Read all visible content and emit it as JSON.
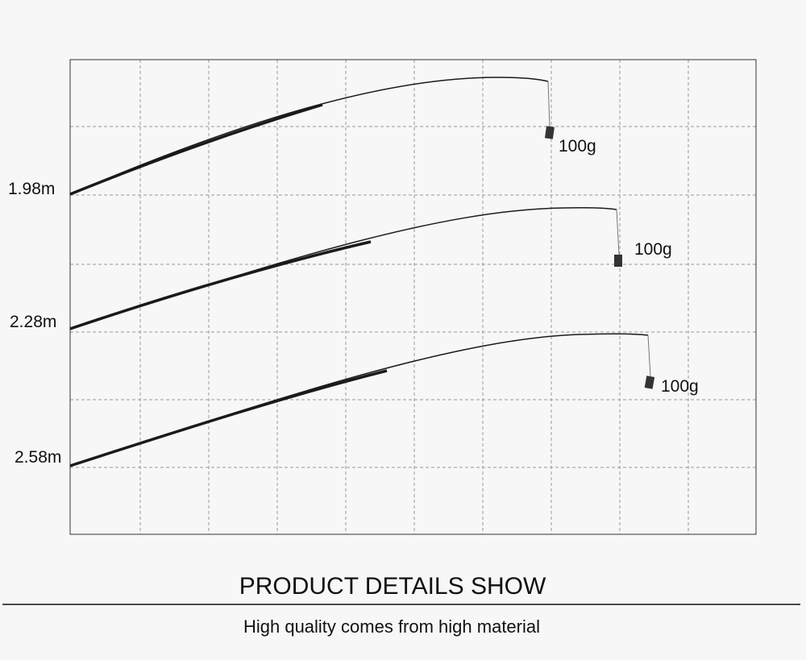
{
  "rods": [
    {
      "length": "1.98m",
      "weight": "100g"
    },
    {
      "length": "2.28m",
      "weight": "100g"
    },
    {
      "length": "2.58m",
      "weight": "100g"
    }
  ],
  "heading": "PRODUCT DETAILS SHOW",
  "subheading": "High quality comes from high material"
}
